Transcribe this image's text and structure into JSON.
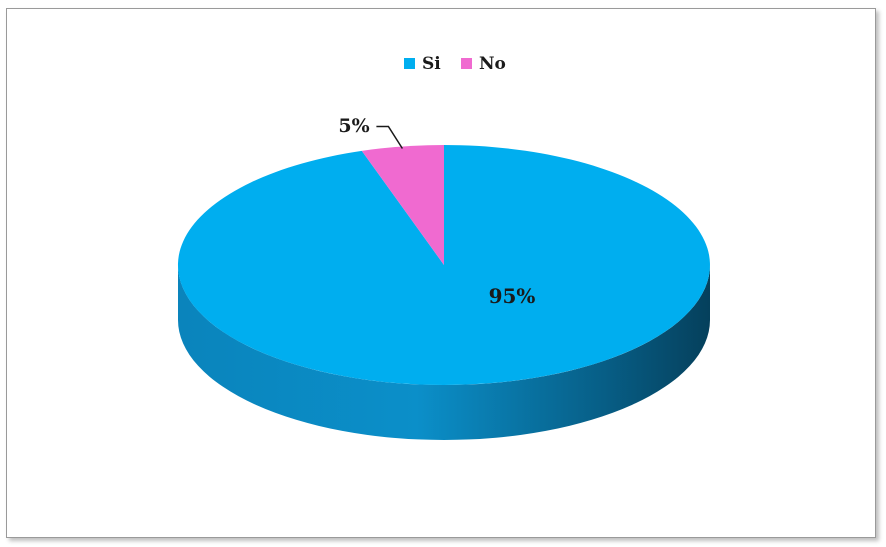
{
  "chart_data": {
    "type": "pie",
    "three_d": true,
    "title": "",
    "legend_position": "top",
    "slices": [
      {
        "name": "Si",
        "value": 95,
        "label": "95%",
        "color": "#00aeef"
      },
      {
        "name": "No",
        "value": 5,
        "label": "5%",
        "color": "#f06ad0"
      }
    ]
  }
}
